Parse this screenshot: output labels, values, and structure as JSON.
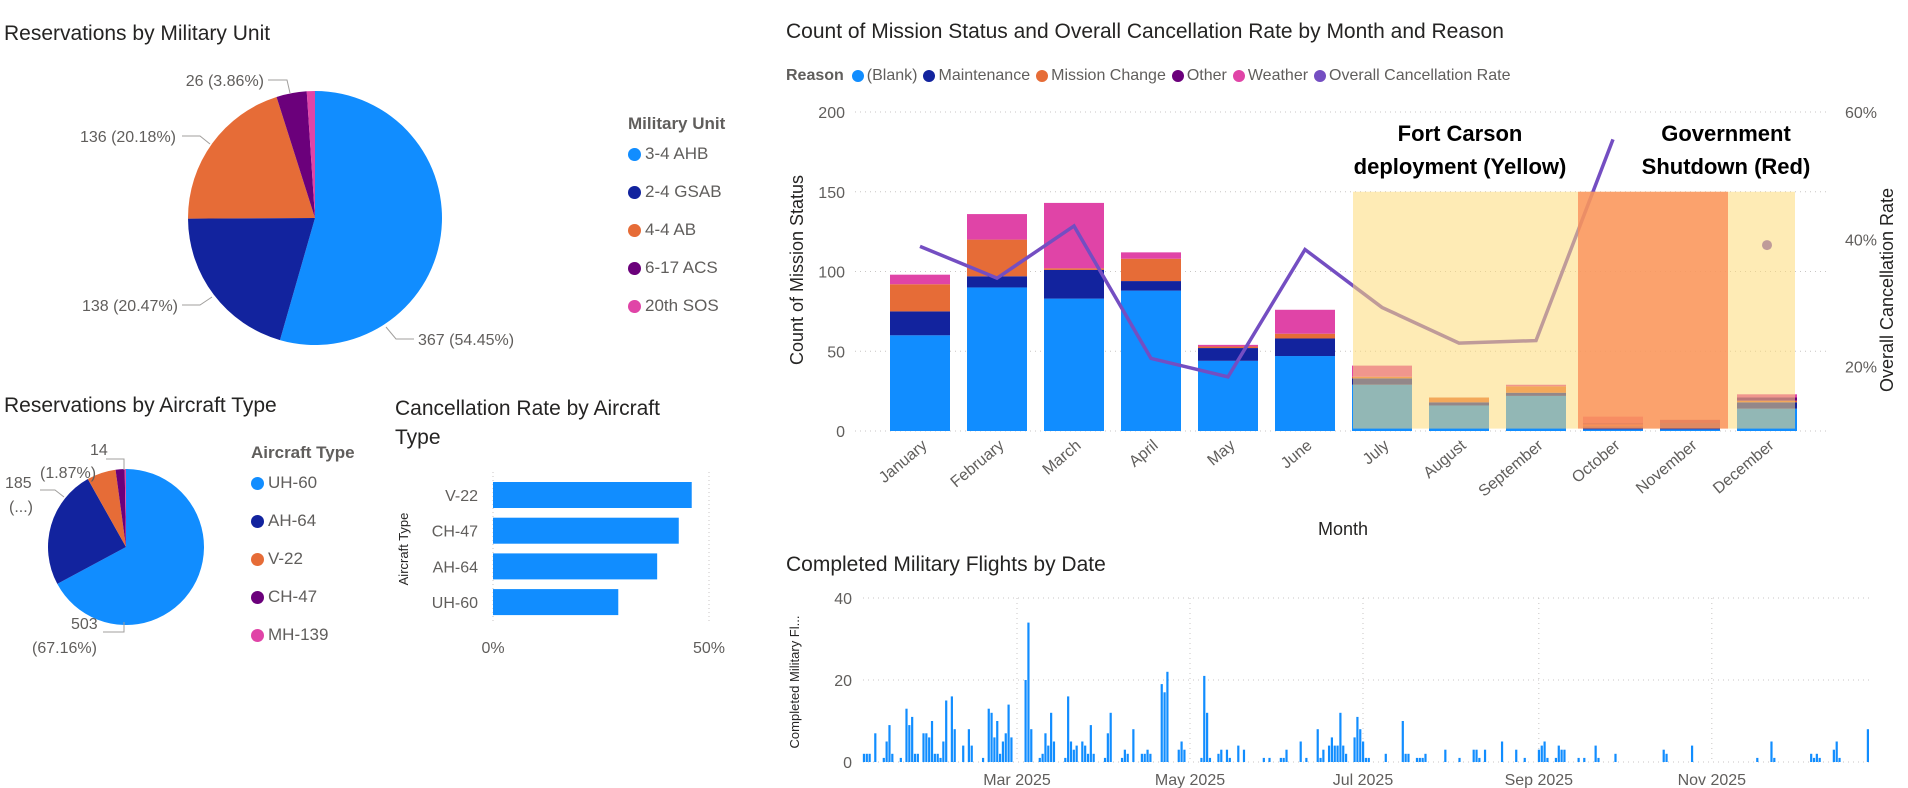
{
  "colors": {
    "blue": "#118DFF",
    "dark_blue": "#12239E",
    "orange": "#E66C37",
    "purple": "#6B007B",
    "pink": "#E044A7",
    "line": "#744EC2"
  },
  "unit_pie": {
    "title": "Reservations by Military Unit",
    "legend_title": "Military Unit",
    "labels": {
      "a": "367 (54.45%)",
      "b": "138 (20.47%)",
      "c": "136 (20.18%)",
      "d": "26 (3.86%)"
    }
  },
  "aircraft_pie": {
    "title": "Reservations by Aircraft Type",
    "legend_title": "Aircraft Type",
    "labels": {
      "a1": "503",
      "a2": "(67.16%)",
      "b1": "185",
      "b2": "(...)",
      "d1": "14",
      "d2": "(1.87%)"
    }
  },
  "cancel_bar": {
    "title_line1": "Cancellation Rate by Aircraft",
    "title_line2": "Type"
  },
  "main_chart": {
    "title": "Count of Mission Status and Overall Cancellation Rate by Month and Reason",
    "legend_title": "Reason",
    "annotation_yellow_1": "Fort Carson",
    "annotation_yellow_2": "deployment  (Yellow)",
    "annotation_red_1": "Government",
    "annotation_red_2": "Shutdown (Red)"
  },
  "flights_chart": {
    "title": "Completed Military Flights by Date"
  },
  "chart_data": [
    {
      "type": "pie",
      "title": "Reservations by Military Unit",
      "legend_title": "Military Unit",
      "categories": [
        "3-4 AHB",
        "2-4 GSAB",
        "4-4 AB",
        "6-17 ACS",
        "20th SOS"
      ],
      "values": [
        367,
        138,
        136,
        26,
        7
      ],
      "color_keys": [
        "blue",
        "dark_blue",
        "orange",
        "purple",
        "pink"
      ]
    },
    {
      "type": "pie",
      "title": "Reservations by Aircraft Type",
      "legend_title": "Aircraft Type",
      "categories": [
        "UH-60",
        "AH-64",
        "V-22",
        "CH-47",
        "MH-139"
      ],
      "values": [
        503,
        185,
        45,
        14,
        2
      ],
      "color_keys": [
        "blue",
        "dark_blue",
        "orange",
        "purple",
        "pink"
      ]
    },
    {
      "type": "bar",
      "orientation": "horizontal",
      "title": "Cancellation Rate by Aircraft Type",
      "ylabel": "Aircraft Type",
      "categories": [
        "V-22",
        "CH-47",
        "AH-64",
        "UH-60"
      ],
      "values": [
        0.46,
        0.43,
        0.38,
        0.29
      ],
      "xlim": [
        0,
        0.5
      ],
      "xticks": [
        "0%",
        "50%"
      ]
    },
    {
      "type": "bar",
      "stacked": true,
      "title": "Count of Mission Status and Overall Cancellation Rate by Month and Reason",
      "xlabel": "Month",
      "ylabel": "Count of Mission Status",
      "y2label": "Overall Cancellation Rate",
      "ylim": [
        0,
        200
      ],
      "yticks": [
        "0",
        "50",
        "100",
        "150",
        "200"
      ],
      "y2lim": [
        0.1,
        0.6
      ],
      "y2ticks": [
        "20%",
        "40%",
        "60%"
      ],
      "categories": [
        "January",
        "February",
        "March",
        "April",
        "May",
        "June",
        "July",
        "August",
        "September",
        "October",
        "November",
        "December"
      ],
      "series": [
        {
          "name": "(Blank)",
          "color_key": "blue",
          "values": [
            60,
            90,
            83,
            88,
            44,
            47,
            29,
            16,
            22,
            1,
            1,
            14
          ]
        },
        {
          "name": "Maintenance",
          "color_key": "dark_blue",
          "values": [
            15,
            7,
            18,
            6,
            8,
            11,
            4,
            2,
            2,
            2,
            4,
            4
          ]
        },
        {
          "name": "Mission Change",
          "color_key": "orange",
          "values": [
            17,
            23,
            1,
            14,
            1,
            3,
            1,
            3,
            4,
            1,
            0,
            1
          ]
        },
        {
          "name": "Other",
          "color_key": "purple",
          "values": [
            0,
            0,
            0,
            0,
            0,
            0,
            0,
            0,
            0,
            1,
            2,
            2
          ]
        },
        {
          "name": "Weather",
          "color_key": "pink",
          "values": [
            6,
            16,
            41,
            4,
            1,
            15,
            7,
            0,
            1,
            4,
            0,
            2
          ]
        }
      ],
      "line": {
        "name": "Overall Cancellation Rate",
        "color_key": "line",
        "values": [
          0.389,
          0.339,
          0.421,
          0.213,
          0.184,
          0.384,
          0.293,
          0.237,
          0.241,
          0.557,
          null,
          0.391
        ]
      },
      "highlights": [
        {
          "label": "Fort Carson deployment (Yellow)",
          "from": "July",
          "to": "December",
          "color": "#FDDB78"
        },
        {
          "label": "Government Shutdown (Red)",
          "from": "October",
          "to": "November",
          "color": "#F98A55"
        }
      ]
    },
    {
      "type": "bar",
      "title": "Completed Military Flights by Date",
      "ylabel": "Completed Military Fl...",
      "ylim": [
        0,
        40
      ],
      "yticks": [
        "0",
        "20",
        "40"
      ],
      "year": 2025,
      "x_unit": "day_of_year",
      "xticks": [
        {
          "day": 60,
          "label": "Mar 2025"
        },
        {
          "day": 121,
          "label": "May 2025"
        },
        {
          "day": 182,
          "label": "Jul 2025"
        },
        {
          "day": 244,
          "label": "Sep 2025"
        },
        {
          "day": 305,
          "label": "Nov 2025"
        }
      ],
      "points": [
        [
          6,
          2
        ],
        [
          7,
          2
        ],
        [
          8,
          2
        ],
        [
          10,
          7
        ],
        [
          13,
          1
        ],
        [
          14,
          5
        ],
        [
          15,
          9
        ],
        [
          16,
          2
        ],
        [
          19,
          1
        ],
        [
          21,
          13
        ],
        [
          22,
          9
        ],
        [
          23,
          11
        ],
        [
          24,
          2
        ],
        [
          25,
          2
        ],
        [
          27,
          7
        ],
        [
          28,
          7
        ],
        [
          29,
          6
        ],
        [
          30,
          10
        ],
        [
          31,
          2
        ],
        [
          32,
          2
        ],
        [
          33,
          1
        ],
        [
          34,
          5
        ],
        [
          35,
          15
        ],
        [
          37,
          16
        ],
        [
          38,
          8
        ],
        [
          41,
          4
        ],
        [
          43,
          8
        ],
        [
          44,
          4
        ],
        [
          48,
          1
        ],
        [
          50,
          13
        ],
        [
          51,
          12
        ],
        [
          52,
          6
        ],
        [
          53,
          10
        ],
        [
          54,
          2
        ],
        [
          55,
          5
        ],
        [
          56,
          7
        ],
        [
          57,
          14
        ],
        [
          58,
          6
        ],
        [
          63,
          20
        ],
        [
          64,
          34
        ],
        [
          65,
          8
        ],
        [
          68,
          1
        ],
        [
          69,
          2
        ],
        [
          70,
          7
        ],
        [
          71,
          4
        ],
        [
          72,
          12
        ],
        [
          73,
          5
        ],
        [
          77,
          1
        ],
        [
          78,
          16
        ],
        [
          79,
          5
        ],
        [
          80,
          3
        ],
        [
          81,
          4
        ],
        [
          83,
          5
        ],
        [
          84,
          4
        ],
        [
          85,
          2
        ],
        [
          86,
          9
        ],
        [
          87,
          2
        ],
        [
          91,
          1
        ],
        [
          92,
          7
        ],
        [
          93,
          12
        ],
        [
          97,
          1
        ],
        [
          98,
          3
        ],
        [
          99,
          2
        ],
        [
          101,
          8
        ],
        [
          104,
          2
        ],
        [
          105,
          2
        ],
        [
          106,
          3
        ],
        [
          107,
          2
        ],
        [
          111,
          19
        ],
        [
          112,
          17
        ],
        [
          113,
          22
        ],
        [
          117,
          3
        ],
        [
          118,
          5
        ],
        [
          119,
          3
        ],
        [
          125,
          1
        ],
        [
          126,
          21
        ],
        [
          127,
          12
        ],
        [
          128,
          1
        ],
        [
          131,
          2
        ],
        [
          132,
          3
        ],
        [
          134,
          3
        ],
        [
          135,
          1
        ],
        [
          138,
          4
        ],
        [
          140,
          3
        ],
        [
          147,
          1
        ],
        [
          149,
          1
        ],
        [
          153,
          1
        ],
        [
          154,
          1
        ],
        [
          155,
          3
        ],
        [
          160,
          5
        ],
        [
          162,
          1
        ],
        [
          166,
          8
        ],
        [
          167,
          1
        ],
        [
          168,
          3
        ],
        [
          170,
          4
        ],
        [
          171,
          6
        ],
        [
          172,
          4
        ],
        [
          173,
          4
        ],
        [
          174,
          12
        ],
        [
          175,
          4
        ],
        [
          176,
          2
        ],
        [
          179,
          6
        ],
        [
          180,
          11
        ],
        [
          181,
          8
        ],
        [
          182,
          5
        ],
        [
          183,
          1
        ],
        [
          184,
          1
        ],
        [
          190,
          2
        ],
        [
          196,
          10
        ],
        [
          197,
          2
        ],
        [
          198,
          2
        ],
        [
          201,
          1
        ],
        [
          202,
          1
        ],
        [
          203,
          1
        ],
        [
          204,
          2
        ],
        [
          211,
          3
        ],
        [
          216,
          1
        ],
        [
          221,
          3
        ],
        [
          222,
          3
        ],
        [
          223,
          1
        ],
        [
          225,
          3
        ],
        [
          231,
          5
        ],
        [
          236,
          3
        ],
        [
          239,
          1
        ],
        [
          244,
          3
        ],
        [
          245,
          4
        ],
        [
          246,
          5
        ],
        [
          247,
          1
        ],
        [
          250,
          1
        ],
        [
          251,
          4
        ],
        [
          252,
          3
        ],
        [
          253,
          3
        ],
        [
          258,
          1
        ],
        [
          260,
          1
        ],
        [
          264,
          4
        ],
        [
          265,
          1
        ],
        [
          271,
          2
        ],
        [
          288,
          3
        ],
        [
          289,
          2
        ],
        [
          298,
          4
        ],
        [
          321,
          1
        ],
        [
          326,
          5
        ],
        [
          327,
          1
        ],
        [
          340,
          2
        ],
        [
          341,
          1
        ],
        [
          342,
          2
        ],
        [
          343,
          1
        ],
        [
          348,
          3
        ],
        [
          349,
          5
        ],
        [
          350,
          1
        ],
        [
          360,
          8
        ]
      ]
    }
  ]
}
